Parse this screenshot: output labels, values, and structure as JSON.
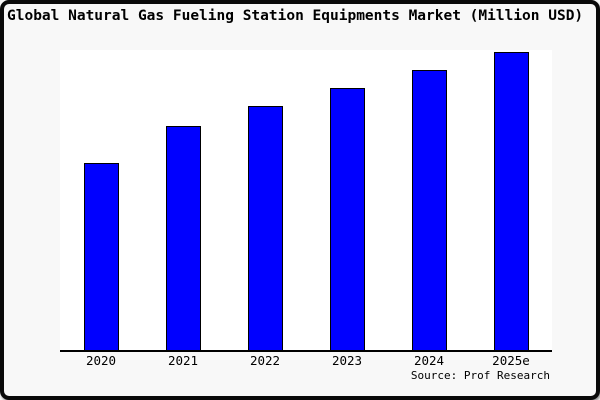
{
  "chart_data": {
    "type": "bar",
    "title": "Global Natural Gas Fueling Station Equipments Market (Million USD)",
    "categories": [
      "2020",
      "2021",
      "2022",
      "2023",
      "2024",
      "2025e"
    ],
    "values": [
      62.9,
      75.3,
      81.8,
      87.9,
      94.0,
      100
    ],
    "values_note": "relative bar heights as % of tallest (2025e) bar; y-axis has no ticks or labels in the image",
    "xlabel": "",
    "ylabel": "",
    "ylim": [
      0,
      100.5
    ],
    "grid": false,
    "legend": false,
    "bar_color": "#0000ff",
    "bar_border_color": "#000000",
    "axis_color": "#000000",
    "plot_background": "#ffffff",
    "figure_background": "#f8f8f8",
    "source": "Source: Prof Research"
  }
}
